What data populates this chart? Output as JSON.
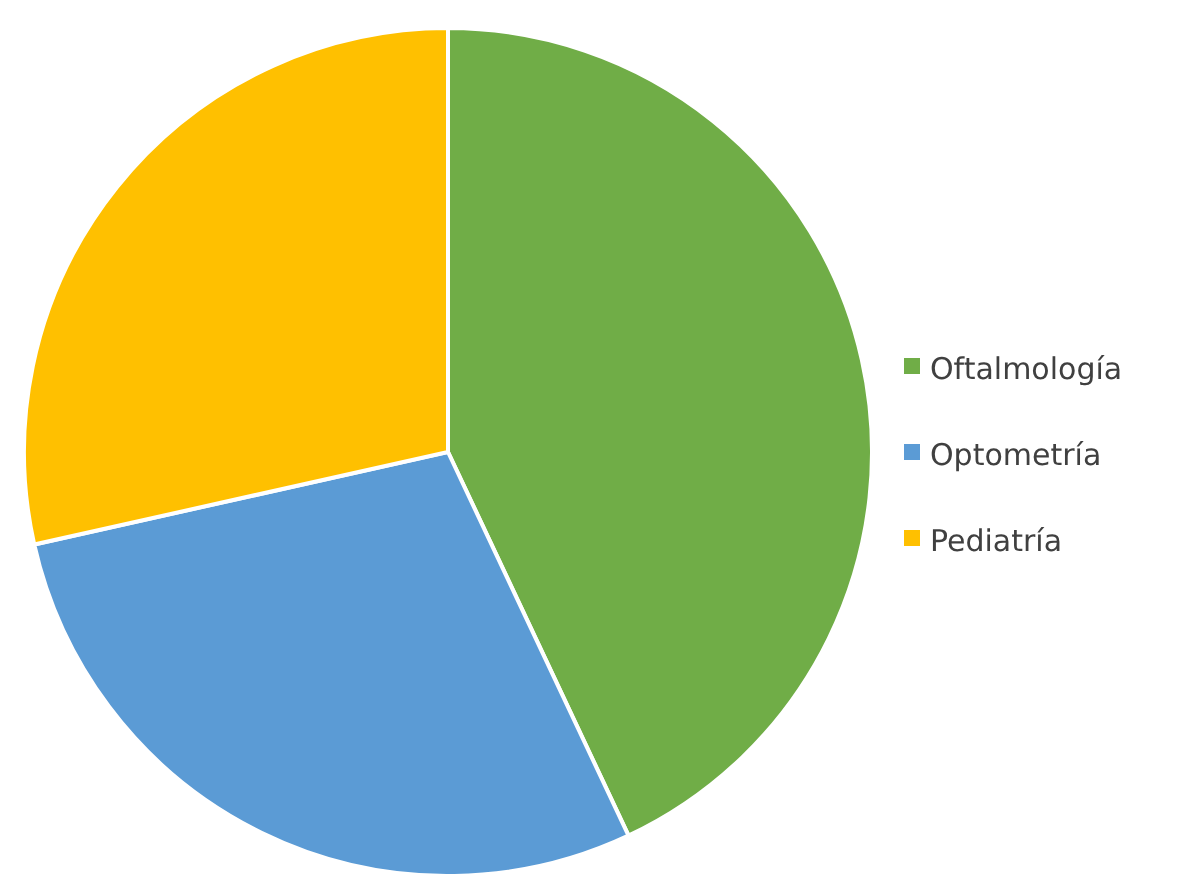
{
  "chart_data": {
    "type": "pie",
    "categories": [
      "Oftalmología",
      "Optometría",
      "Pediatría"
    ],
    "values": [
      43,
      28.5,
      28.5
    ],
    "colors": [
      "#70ad47",
      "#5b9bd5",
      "#ffc000"
    ],
    "legend": "right"
  }
}
